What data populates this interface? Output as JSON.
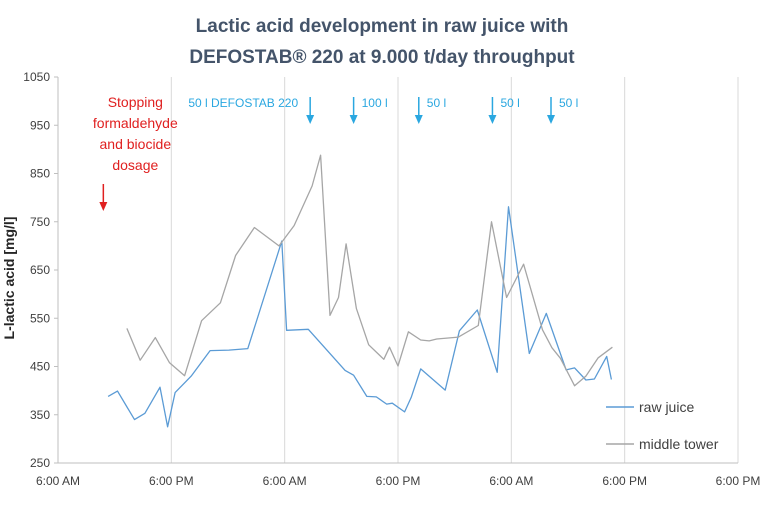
{
  "chart_data": {
    "type": "line",
    "title_line1": "Lactic acid development in raw juice with",
    "title_line2": "DEFOSTAB® 220 at 9.000 t/day throughput",
    "ylabel": "L-lactic acid [mg/l]",
    "xlabel": "",
    "ylim": [
      250,
      1050
    ],
    "yticks": [
      250,
      350,
      450,
      550,
      650,
      750,
      850,
      950,
      1050
    ],
    "xlim_hours": [
      0,
      72
    ],
    "x_unit": "hours from 6:00 AM day 1",
    "xticks": [
      {
        "h": 0,
        "label": "6:00 AM"
      },
      {
        "h": 12,
        "label": "6:00 PM"
      },
      {
        "h": 24,
        "label": "6:00 AM"
      },
      {
        "h": 36,
        "label": "6:00 PM"
      },
      {
        "h": 48,
        "label": "6:00 AM"
      },
      {
        "h": 60,
        "label": "6:00 PM"
      }
    ],
    "series": [
      {
        "name": "raw juice",
        "color": "#5b9bd5",
        "x": [
          5.3,
          6.3,
          8.1,
          9.2,
          10.8,
          11.6,
          12.4,
          14.1,
          16.1,
          18.1,
          20.1,
          23.7,
          24.2,
          26.5,
          30.4,
          31.3,
          32.7,
          33.7,
          34.8,
          35.4,
          36.7,
          37.4,
          38.4,
          41,
          42.5,
          44.4,
          46.5,
          47.7,
          49.9,
          51.7,
          53.8,
          54.7,
          55.9,
          56.8,
          58.1,
          58.6
        ],
        "values": [
          388,
          399,
          340,
          353,
          407,
          325,
          396,
          430,
          483,
          484,
          487,
          710,
          525,
          527,
          442,
          432,
          388,
          387,
          372,
          374,
          356,
          386,
          445,
          401,
          524,
          567,
          438,
          781,
          477,
          560,
          443,
          447,
          422,
          424,
          471,
          423
        ]
      },
      {
        "name": "middle tower",
        "color": "#a6a6a6",
        "x": [
          7.3,
          8.7,
          10.3,
          11.8,
          13.4,
          15.2,
          17.2,
          18.8,
          20.8,
          23.4,
          25,
          26.9,
          27.8,
          28.8,
          29.7,
          30.5,
          31.6,
          32.9,
          34.5,
          35.1,
          36,
          37.1,
          38.4,
          39.3,
          40.1,
          42.4,
          44.5,
          45.9,
          47.5,
          49.3,
          51.3,
          52.3,
          53.2,
          54.7,
          55.9,
          57.2,
          58.7
        ],
        "values": [
          529,
          463,
          510,
          458,
          431,
          545,
          582,
          680,
          738,
          700,
          742,
          824,
          888,
          556,
          593,
          704,
          570,
          495,
          465,
          490,
          451,
          522,
          505,
          503,
          507,
          511,
          535,
          750,
          593,
          662,
          526,
          489,
          467,
          410,
          430,
          468,
          490
        ]
      }
    ],
    "annotations": {
      "stop_text": [
        "Stopping",
        "formaldehyde",
        "and biocide",
        "dosage"
      ],
      "stop_arrow_h": 4.8,
      "doses": [
        {
          "label": "50 l DEFOSTAB 220",
          "arrow_h": 26.7
        },
        {
          "label": "100 l",
          "arrow_h": 31.3
        },
        {
          "label": "50 l",
          "arrow_h": 38.2
        },
        {
          "label": "50 l",
          "arrow_h": 46
        },
        {
          "label": "50 l",
          "arrow_h": 52.2
        }
      ]
    },
    "legend_position": "bottom-right",
    "grid": "vertical lines at day boundaries"
  }
}
